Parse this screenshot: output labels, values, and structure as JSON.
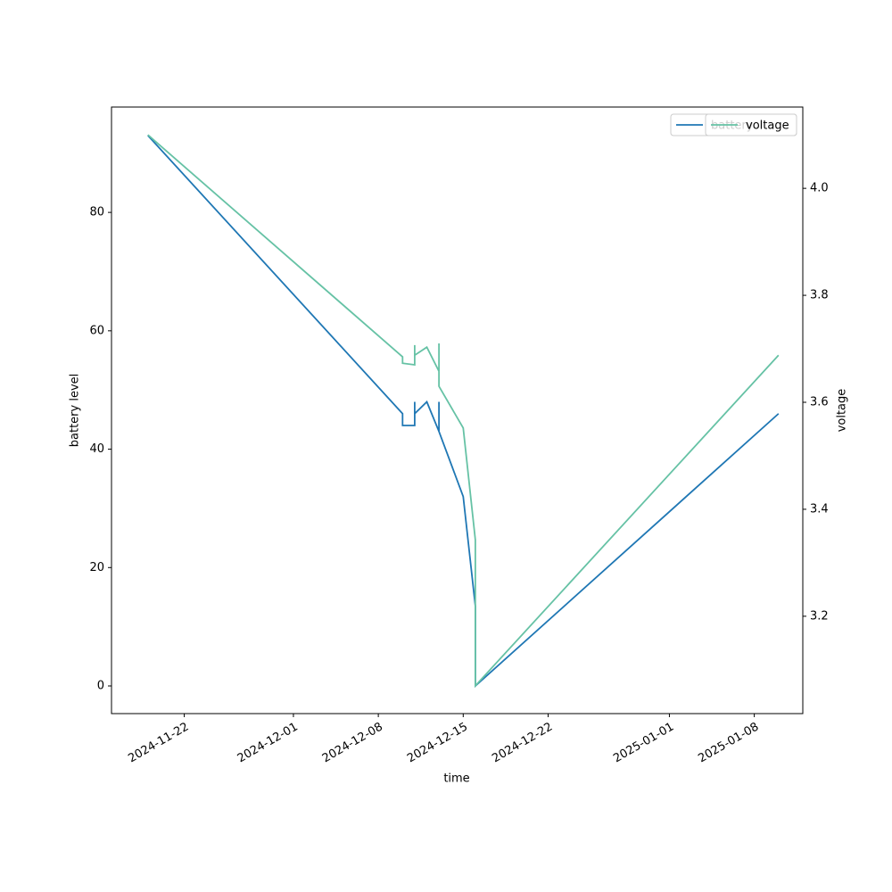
{
  "chart_data": {
    "type": "line",
    "xlabel": "time",
    "ylabel": "battery level",
    "y2label": "voltage",
    "legend": "upper right",
    "x": [
      "2024-11-19",
      "2024-12-10",
      "2024-12-10",
      "2024-12-11",
      "2024-12-11",
      "2024-12-11",
      "2024-12-12",
      "2024-12-13",
      "2024-12-13",
      "2024-12-13",
      "2024-12-13",
      "2024-12-15",
      "2024-12-16",
      "2024-12-16",
      "2025-01-10"
    ],
    "series": [
      {
        "name": "battery",
        "color": "#1f77b4",
        "values": [
          93,
          46,
          44,
          44,
          48,
          46,
          48,
          43,
          48,
          46,
          43,
          32,
          13.5,
          0,
          46
        ]
      },
      {
        "name": "voltage",
        "color": "#66c2a5",
        "axis": "y2",
        "values": [
          4.1,
          3.685,
          3.673,
          3.67,
          3.707,
          3.688,
          3.703,
          3.658,
          3.71,
          3.69,
          3.63,
          3.552,
          3.343,
          3.07,
          3.688
        ]
      }
    ],
    "xlim": [
      "2024-11-16",
      "2025-01-12"
    ],
    "xticks": [
      "2024-11-22",
      "2024-12-01",
      "2024-12-08",
      "2024-12-15",
      "2024-12-22",
      "2025-01-01",
      "2025-01-08"
    ],
    "ylim": [
      -4.67,
      97.8
    ],
    "yticks": [
      0,
      20,
      40,
      60,
      80
    ],
    "y2lim": [
      3.018,
      4.152
    ],
    "y2ticks": [
      3.2,
      3.4,
      3.6,
      3.8,
      {
        "value": 4,
        "label": "4.0"
      }
    ],
    "grid": false
  }
}
